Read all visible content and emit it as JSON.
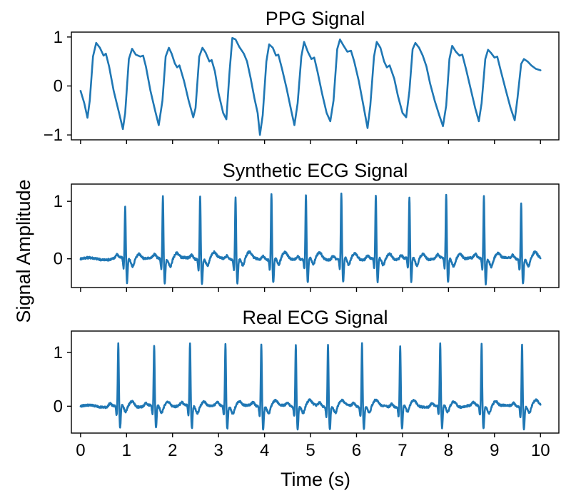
{
  "figure": {
    "ylabel": "Signal Amplitude",
    "xlabel": "Time (s)",
    "series_color": "#1f77b4"
  },
  "chart_data": [
    {
      "type": "line",
      "title": "PPG Signal",
      "xlim": [
        -0.2,
        10.4
      ],
      "ylim": [
        -1.1,
        1.1
      ],
      "yticks": [
        -1,
        0,
        1
      ],
      "ytick_labels": [
        "−1",
        "0",
        "1"
      ],
      "xticks": [
        0,
        1,
        2,
        3,
        4,
        5,
        6,
        7,
        8,
        9,
        10
      ],
      "xtick_labels": [],
      "series": [
        {
          "points": [
            [
              0,
              -0.1
            ],
            [
              0.08,
              -0.35
            ],
            [
              0.15,
              -0.65
            ],
            [
              0.2,
              -0.3
            ],
            [
              0.27,
              0.6
            ],
            [
              0.34,
              0.88
            ],
            [
              0.42,
              0.78
            ],
            [
              0.5,
              0.62
            ],
            [
              0.55,
              0.66
            ],
            [
              0.62,
              0.4
            ],
            [
              0.72,
              -0.1
            ],
            [
              0.85,
              -0.6
            ],
            [
              0.92,
              -0.88
            ],
            [
              0.97,
              -0.55
            ],
            [
              1.05,
              0.55
            ],
            [
              1.12,
              0.76
            ],
            [
              1.2,
              0.64
            ],
            [
              1.3,
              0.6
            ],
            [
              1.36,
              0.62
            ],
            [
              1.42,
              0.4
            ],
            [
              1.52,
              -0.1
            ],
            [
              1.62,
              -0.5
            ],
            [
              1.7,
              -0.8
            ],
            [
              1.78,
              -0.3
            ],
            [
              1.85,
              0.6
            ],
            [
              1.92,
              0.78
            ],
            [
              1.98,
              0.66
            ],
            [
              2.05,
              0.46
            ],
            [
              2.1,
              0.38
            ],
            [
              2.15,
              0.42
            ],
            [
              2.25,
              0.1
            ],
            [
              2.35,
              -0.3
            ],
            [
              2.45,
              -0.64
            ],
            [
              2.5,
              -0.45
            ],
            [
              2.58,
              0.6
            ],
            [
              2.65,
              0.78
            ],
            [
              2.72,
              0.68
            ],
            [
              2.8,
              0.5
            ],
            [
              2.85,
              0.53
            ],
            [
              2.92,
              0.3
            ],
            [
              3.0,
              -0.15
            ],
            [
              3.1,
              -0.55
            ],
            [
              3.17,
              -0.68
            ],
            [
              3.24,
              0.3
            ],
            [
              3.3,
              0.98
            ],
            [
              3.37,
              0.95
            ],
            [
              3.45,
              0.8
            ],
            [
              3.55,
              0.66
            ],
            [
              3.62,
              0.5
            ],
            [
              3.7,
              0.15
            ],
            [
              3.78,
              -0.25
            ],
            [
              3.85,
              -0.55
            ],
            [
              3.9,
              -1.0
            ],
            [
              3.96,
              -0.6
            ],
            [
              4.04,
              0.5
            ],
            [
              4.1,
              0.85
            ],
            [
              4.18,
              0.78
            ],
            [
              4.25,
              0.62
            ],
            [
              4.3,
              0.64
            ],
            [
              4.38,
              0.35
            ],
            [
              4.48,
              -0.05
            ],
            [
              4.58,
              -0.5
            ],
            [
              4.65,
              -0.8
            ],
            [
              4.72,
              -0.35
            ],
            [
              4.8,
              0.6
            ],
            [
              4.86,
              0.9
            ],
            [
              4.94,
              0.7
            ],
            [
              5.02,
              0.55
            ],
            [
              5.08,
              0.58
            ],
            [
              5.15,
              0.3
            ],
            [
              5.25,
              -0.15
            ],
            [
              5.35,
              -0.55
            ],
            [
              5.43,
              -0.72
            ],
            [
              5.5,
              -0.3
            ],
            [
              5.58,
              0.75
            ],
            [
              5.64,
              0.95
            ],
            [
              5.72,
              0.82
            ],
            [
              5.8,
              0.7
            ],
            [
              5.88,
              0.72
            ],
            [
              5.95,
              0.5
            ],
            [
              6.05,
              0.1
            ],
            [
              6.15,
              -0.4
            ],
            [
              6.24,
              -0.86
            ],
            [
              6.3,
              -0.4
            ],
            [
              6.38,
              0.6
            ],
            [
              6.44,
              0.9
            ],
            [
              6.52,
              0.78
            ],
            [
              6.6,
              0.5
            ],
            [
              6.66,
              0.38
            ],
            [
              6.72,
              0.42
            ],
            [
              6.82,
              0.15
            ],
            [
              6.9,
              -0.2
            ],
            [
              7.0,
              -0.55
            ],
            [
              7.08,
              -0.64
            ],
            [
              7.15,
              -0.1
            ],
            [
              7.22,
              0.75
            ],
            [
              7.28,
              0.88
            ],
            [
              7.36,
              0.78
            ],
            [
              7.44,
              0.62
            ],
            [
              7.52,
              0.4
            ],
            [
              7.6,
              0.05
            ],
            [
              7.7,
              -0.3
            ],
            [
              7.8,
              -0.6
            ],
            [
              7.88,
              -0.82
            ],
            [
              7.95,
              -0.4
            ],
            [
              8.02,
              0.55
            ],
            [
              8.08,
              0.82
            ],
            [
              8.16,
              0.7
            ],
            [
              8.24,
              0.62
            ],
            [
              8.3,
              0.64
            ],
            [
              8.38,
              0.35
            ],
            [
              8.48,
              -0.05
            ],
            [
              8.58,
              -0.45
            ],
            [
              8.66,
              -0.72
            ],
            [
              8.72,
              -0.35
            ],
            [
              8.8,
              0.55
            ],
            [
              8.86,
              0.74
            ],
            [
              8.92,
              0.68
            ],
            [
              9.0,
              0.58
            ],
            [
              9.06,
              0.6
            ],
            [
              9.14,
              0.3
            ],
            [
              9.25,
              -0.1
            ],
            [
              9.35,
              -0.45
            ],
            [
              9.44,
              -0.7
            ],
            [
              9.5,
              -0.25
            ],
            [
              9.58,
              0.45
            ],
            [
              9.64,
              0.55
            ],
            [
              9.72,
              0.5
            ],
            [
              9.8,
              0.42
            ],
            [
              9.9,
              0.35
            ],
            [
              10.0,
              0.32
            ]
          ]
        }
      ]
    },
    {
      "type": "line",
      "title": "Synthetic ECG Signal",
      "xlim": [
        -0.2,
        10.4
      ],
      "ylim": [
        -0.5,
        1.3
      ],
      "yticks": [
        0,
        1
      ],
      "ytick_labels": [
        "0",
        "1"
      ],
      "xticks": [
        0,
        1,
        2,
        3,
        4,
        5,
        6,
        7,
        8,
        9,
        10
      ],
      "xtick_labels": [],
      "beat_times": [
        0.97,
        1.79,
        2.6,
        3.37,
        4.15,
        4.9,
        5.67,
        6.42,
        7.15,
        7.95,
        8.77,
        9.58
      ],
      "beat_peaks": [
        0.9,
        1.1,
        1.13,
        1.1,
        1.15,
        1.12,
        1.13,
        1.1,
        1.06,
        1.12,
        1.1,
        0.98
      ],
      "baseline": 0.0
    },
    {
      "type": "line",
      "title": "Real ECG Signal",
      "xlim": [
        -0.2,
        10.4
      ],
      "ylim": [
        -0.5,
        1.4
      ],
      "yticks": [
        0,
        1
      ],
      "ytick_labels": [
        "0",
        "1"
      ],
      "xticks": [
        0,
        1,
        2,
        3,
        4,
        5,
        6,
        7,
        8,
        9,
        10
      ],
      "xtick_labels": [
        "0",
        "1",
        "2",
        "3",
        "4",
        "5",
        "6",
        "7",
        "8",
        "9",
        "10"
      ],
      "beat_times": [
        0.82,
        1.6,
        2.38,
        3.15,
        3.93,
        4.68,
        5.38,
        6.12,
        6.95,
        7.82,
        8.72,
        9.6
      ],
      "beat_peaks": [
        1.15,
        1.12,
        1.18,
        1.17,
        1.19,
        1.18,
        1.18,
        1.2,
        1.14,
        1.15,
        1.16,
        1.18
      ],
      "baseline": 0.0
    }
  ]
}
